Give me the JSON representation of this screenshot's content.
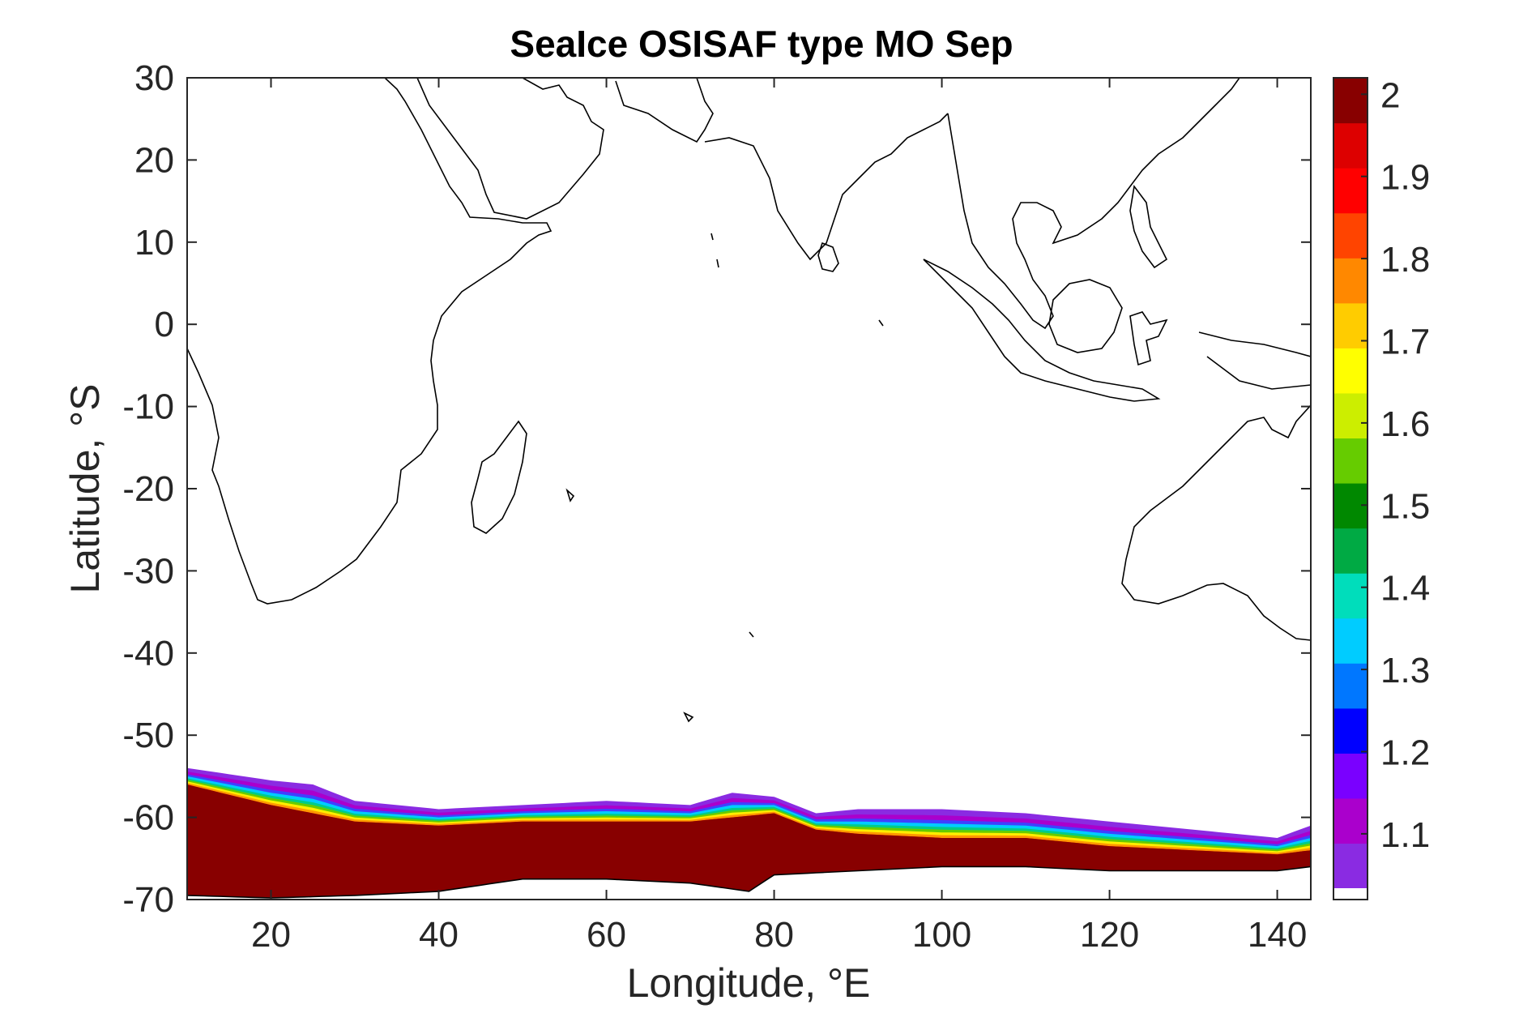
{
  "chart_data": {
    "type": "heatmap",
    "title": "SeaIce OSISAF type MO Sep",
    "xlabel": "Longitude, °E",
    "ylabel": "Latitude, °S",
    "xlim": [
      10,
      144
    ],
    "ylim": [
      -70,
      30
    ],
    "xticks": [
      20,
      40,
      60,
      80,
      100,
      120,
      140
    ],
    "yticks": [
      30,
      20,
      10,
      0,
      -10,
      -20,
      -30,
      -40,
      -50,
      -60,
      -70
    ],
    "grid": false,
    "colorbar": {
      "range": [
        1.02,
        2.02
      ],
      "ticks": [
        "2",
        "1.9",
        "1.8",
        "1.7",
        "1.6",
        "1.5",
        "1.4",
        "1.3",
        "1.2",
        "1.1"
      ],
      "colors": [
        "#8a2be2",
        "#aa00cc",
        "#7a00ff",
        "#0000ff",
        "#0077ff",
        "#00ccff",
        "#00ddbb",
        "#00aa44",
        "#008800",
        "#66cc00",
        "#ccee00",
        "#ffff00",
        "#ffcc00",
        "#ff8800",
        "#ff4400",
        "#ff0000",
        "#dd0000",
        "#880000"
      ]
    },
    "ice_band": {
      "description_values": {
        "outer_edge_lat": [
          [
            10,
            -54
          ],
          [
            20,
            -55.5
          ],
          [
            25,
            -56
          ],
          [
            30,
            -58
          ],
          [
            40,
            -59
          ],
          [
            50,
            -58.5
          ],
          [
            60,
            -58
          ],
          [
            70,
            -58.5
          ],
          [
            75,
            -57
          ],
          [
            80,
            -57.5
          ],
          [
            85,
            -59.5
          ],
          [
            90,
            -59
          ],
          [
            100,
            -59
          ],
          [
            110,
            -59.5
          ],
          [
            120,
            -60.5
          ],
          [
            130,
            -61.5
          ],
          [
            140,
            -62.5
          ],
          [
            144,
            -61
          ]
        ],
        "inner_core_top_lat": [
          [
            10,
            -56
          ],
          [
            20,
            -58.5
          ],
          [
            30,
            -60.5
          ],
          [
            40,
            -61
          ],
          [
            50,
            -60.5
          ],
          [
            60,
            -60.5
          ],
          [
            70,
            -60.5
          ],
          [
            80,
            -59.5
          ],
          [
            85,
            -61.5
          ],
          [
            90,
            -62
          ],
          [
            100,
            -62.5
          ],
          [
            110,
            -62.5
          ],
          [
            120,
            -63.5
          ],
          [
            130,
            -64
          ],
          [
            140,
            -64.5
          ],
          [
            144,
            -64
          ]
        ],
        "coast_lat": [
          [
            10,
            -69.5
          ],
          [
            20,
            -69.8
          ],
          [
            30,
            -69.5
          ],
          [
            40,
            -69
          ],
          [
            50,
            -67.5
          ],
          [
            60,
            -67.5
          ],
          [
            70,
            -68
          ],
          [
            77,
            -69
          ],
          [
            80,
            -67
          ],
          [
            90,
            -66.5
          ],
          [
            100,
            -66
          ],
          [
            110,
            -66
          ],
          [
            120,
            -66.5
          ],
          [
            130,
            -66.5
          ],
          [
            140,
            -66.5
          ],
          [
            144,
            -66
          ]
        ]
      }
    }
  }
}
